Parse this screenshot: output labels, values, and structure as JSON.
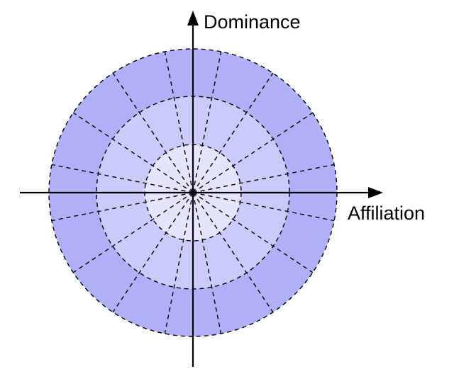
{
  "diagram": {
    "y_axis_label": "Dominance",
    "x_axis_label": "Affiliation",
    "ring_count": 3,
    "sector_count": 16,
    "colors": {
      "outer_ring": "#b0b0f8",
      "middle_ring": "#cacafb",
      "inner_ring": "#e4e4fd",
      "lines": "#000000"
    }
  }
}
